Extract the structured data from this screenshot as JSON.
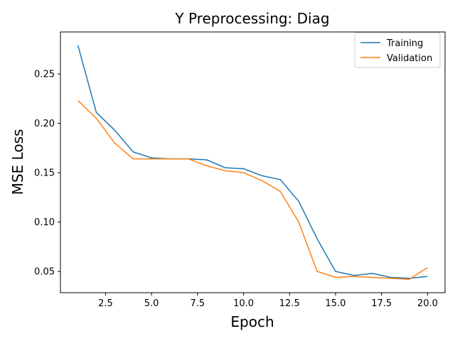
{
  "chart_data": {
    "type": "line",
    "title": "Y Preprocessing: Diag",
    "xlabel": "Epoch",
    "ylabel": "MSE Loss",
    "xlim": [
      0.05,
      20.95
    ],
    "ylim": [
      0.0285,
      0.2925
    ],
    "xticks": [
      2.5,
      5.0,
      7.5,
      10.0,
      12.5,
      15.0,
      17.5,
      20.0
    ],
    "xtick_labels": [
      "2.5",
      "5.0",
      "7.5",
      "10.0",
      "12.5",
      "15.0",
      "17.5",
      "20.0"
    ],
    "yticks": [
      0.05,
      0.1,
      0.15,
      0.2,
      0.25
    ],
    "ytick_labels": [
      "0.05",
      "0.10",
      "0.15",
      "0.20",
      "0.25"
    ],
    "grid": false,
    "legend_position": "top-right",
    "x": [
      1,
      2,
      3,
      4,
      5,
      6,
      7,
      8,
      9,
      10,
      11,
      12,
      13,
      14,
      15,
      16,
      17,
      18,
      19,
      20
    ],
    "series": [
      {
        "name": "Training",
        "color": "#1f77b4",
        "values": [
          0.279,
          0.211,
          0.193,
          0.171,
          0.165,
          0.164,
          0.164,
          0.163,
          0.155,
          0.154,
          0.147,
          0.143,
          0.121,
          0.083,
          0.05,
          0.046,
          0.048,
          0.044,
          0.043,
          0.045
        ]
      },
      {
        "name": "Validation",
        "color": "#ff7f0e",
        "values": [
          0.223,
          0.205,
          0.18,
          0.164,
          0.164,
          0.164,
          0.164,
          0.157,
          0.152,
          0.15,
          0.142,
          0.131,
          0.1,
          0.05,
          0.044,
          0.045,
          0.044,
          0.043,
          0.042,
          0.054
        ]
      }
    ]
  }
}
